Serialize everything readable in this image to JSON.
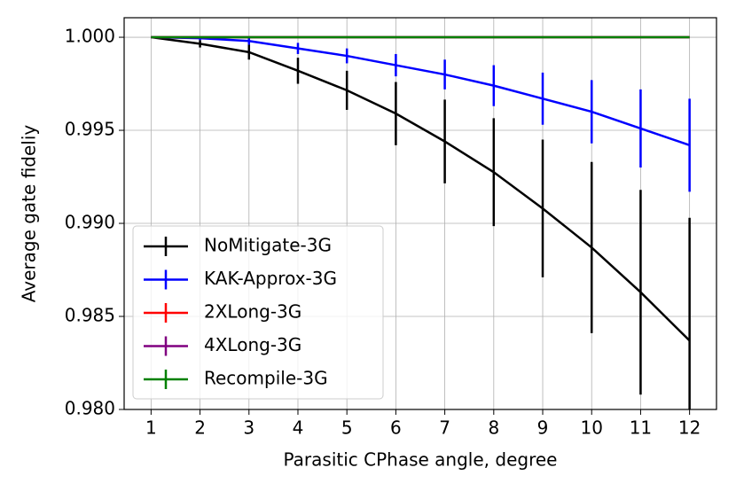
{
  "chart_data": {
    "type": "line",
    "x_label": "Parasitic CPhase angle, degree",
    "y_label": "Average gate fideliy",
    "x": [
      1,
      2,
      3,
      4,
      5,
      6,
      7,
      8,
      9,
      10,
      11,
      12
    ],
    "xlim": [
      0.45,
      12.55
    ],
    "xticks": [
      1,
      2,
      3,
      4,
      5,
      6,
      7,
      8,
      9,
      10,
      11,
      12
    ],
    "ylim": [
      0.98,
      1.00105
    ],
    "yticks": [
      {
        "value": 0.98,
        "label": "0.980"
      },
      0.985,
      {
        "value": 0.99,
        "label": "0.990"
      },
      0.995,
      {
        "value": 1.0,
        "label": "1.000"
      }
    ],
    "grid": true,
    "legend": "lower left",
    "series": [
      {
        "name": "NoMitigate-3G",
        "color": "#000000",
        "values": [
          1.0,
          0.99965,
          0.9992,
          0.9982,
          0.99715,
          0.9959,
          0.9944,
          0.99275,
          0.9908,
          0.9887,
          0.9863,
          0.9837
        ],
        "errors": [
          0,
          0.0002,
          0.0004,
          0.0007,
          0.00105,
          0.0017,
          0.00225,
          0.0029,
          0.0037,
          0.0046,
          0.0055,
          0.0066
        ]
      },
      {
        "name": "KAK-Approx-3G",
        "color": "#0000ff",
        "values": [
          1.0,
          0.99995,
          0.9998,
          0.9994,
          0.999,
          0.9985,
          0.998,
          0.9974,
          0.9967,
          0.996,
          0.9951,
          0.9942
        ],
        "errors": [
          0,
          0.0001,
          0.0002,
          0.0003,
          0.0004,
          0.0006,
          0.0008,
          0.0011,
          0.0014,
          0.0017,
          0.0021,
          0.0025
        ]
      },
      {
        "name": "2XLong-3G",
        "color": "#ff0000",
        "values": [
          1,
          1,
          1,
          1,
          1,
          1,
          1,
          1,
          1,
          1,
          1,
          1
        ],
        "errors": [
          0,
          0,
          0,
          0,
          0,
          0,
          0,
          0,
          0,
          0,
          0,
          0
        ]
      },
      {
        "name": "4XLong-3G",
        "color": "#800080",
        "values": [
          1,
          1,
          1,
          1,
          1,
          1,
          1,
          1,
          1,
          1,
          1,
          1
        ],
        "errors": [
          0,
          0,
          0,
          0,
          0,
          0,
          0,
          0,
          0,
          0,
          0,
          0
        ]
      },
      {
        "name": "Recompile-3G",
        "color": "#008000",
        "values": [
          1,
          1,
          1,
          1,
          1,
          1,
          1,
          1,
          1,
          1,
          1,
          1
        ],
        "errors": [
          0,
          0,
          0,
          0,
          0,
          0,
          0,
          0,
          0,
          0,
          0,
          0
        ]
      }
    ]
  }
}
